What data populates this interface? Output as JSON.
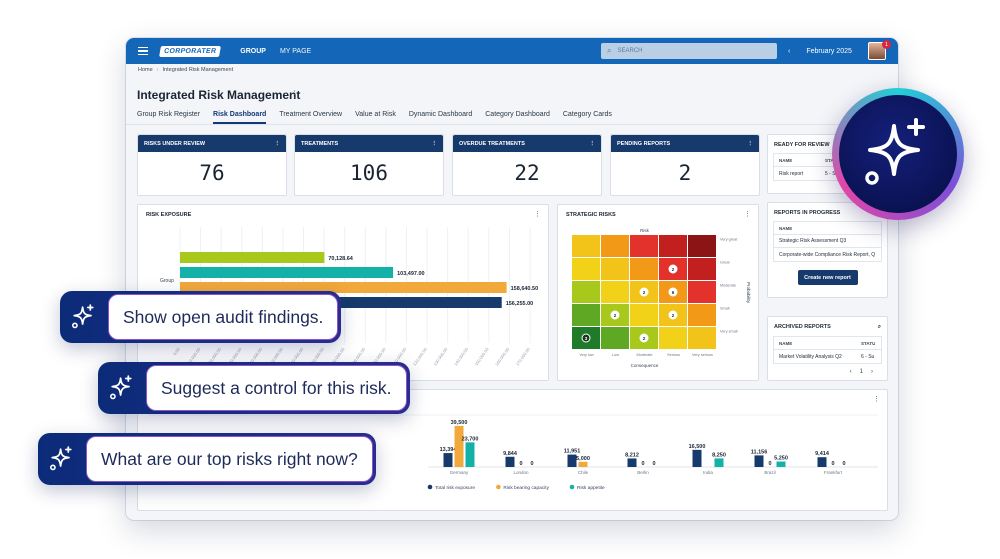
{
  "topbar": {
    "logo": "CORPORATER",
    "nav_group": "GROUP",
    "nav_mypage": "MY PAGE",
    "search_placeholder": "SEARCH",
    "month": "February 2025",
    "prev": "‹",
    "next": "›",
    "notification_count": "1"
  },
  "breadcrumb": {
    "home": "Home",
    "current": "Integrated Risk Management"
  },
  "page": {
    "title": "Integrated Risk Management",
    "more": "⋮"
  },
  "tabs": [
    "Group Risk Register",
    "Risk Dashboard",
    "Treatment Overview",
    "Value at Risk",
    "Dynamic Dashboard",
    "Category Dashboard",
    "Category Cards"
  ],
  "active_tab": "Risk Dashboard",
  "kpis": [
    {
      "label": "RISKS UNDER REVIEW",
      "value": "76"
    },
    {
      "label": "TREATMENTS",
      "value": "106"
    },
    {
      "label": "OVERDUE TREATMENTS",
      "value": "22"
    },
    {
      "label": "PENDING REPORTS",
      "value": "2"
    }
  ],
  "ready_for_review": {
    "title": "READY FOR REVIEW",
    "col_name": "NAME",
    "col_status": "STA",
    "rows": [
      {
        "name": "Risk report",
        "status": "5 - Su"
      }
    ]
  },
  "reports_in_progress": {
    "title": "REPORTS IN PROGRESS",
    "col_name": "NAME",
    "rows": [
      "Strategic Risk Assessment Q3",
      "Corporate-wide Compliance Risk Report, Q"
    ],
    "button": "Create new report"
  },
  "archived_reports": {
    "title": "ARCHIVED REPORTS",
    "col_name": "NAME",
    "col_status": "STATU",
    "rows": [
      {
        "name": "Market Volatility Analysis Q2",
        "status": "6 - Su"
      }
    ],
    "page": "1"
  },
  "risk_exposure": {
    "title": "RISK EXPOSURE",
    "category": "Group",
    "bars": [
      {
        "value": 70128.64,
        "label": "70,128.64",
        "color": "#a8c81c"
      },
      {
        "value": 103497.0,
        "label": "103,497.00",
        "color": "#14b1a8"
      },
      {
        "value": 158640.5,
        "label": "158,640.50",
        "color": "#f2a93b"
      },
      {
        "value": 156255.0,
        "label": "156,255.00",
        "color": "#163a6c"
      }
    ],
    "xticks": [
      "0.00",
      "10,000.00",
      "20,000.00",
      "30,000.00",
      "40,000.00",
      "50,000.00",
      "60,000.00",
      "70,000.00",
      "80,000.00",
      "90,000.00",
      "100,000.00",
      "110,000.00",
      "120,000.00",
      "130,000.00",
      "140,000.00",
      "150,000.00",
      "160,000.00",
      "170,000.00"
    ],
    "xmax": 170000
  },
  "strategic_risks": {
    "title": "STRATEGIC RISKS",
    "top_label": "Risk",
    "x_label": "Consequence",
    "y_label": "Probability",
    "x_ticks": [
      "Very low",
      "Low",
      "Moderate",
      "Serious",
      "Very serious"
    ],
    "y_ticks": [
      "Very great",
      "Great",
      "Moderate",
      "Small",
      "Very small"
    ],
    "colors": [
      [
        "#f2c318",
        "#f29a18",
        "#e2322b",
        "#c21f1f",
        "#8c1414"
      ],
      [
        "#f2d218",
        "#f2c318",
        "#f29a18",
        "#e2322b",
        "#c21f1f"
      ],
      [
        "#a8c81c",
        "#f2d218",
        "#f2c318",
        "#f29a18",
        "#e2322b"
      ],
      [
        "#5ea823",
        "#a8c81c",
        "#f2d218",
        "#f2c318",
        "#f29a18"
      ],
      [
        "#1f7a2a",
        "#5ea823",
        "#a8c81c",
        "#f2d218",
        "#f2c318"
      ]
    ],
    "markers": [
      {
        "row": 1,
        "col": 3,
        "count": "2"
      },
      {
        "row": 2,
        "col": 2,
        "count": "2"
      },
      {
        "row": 2,
        "col": 3,
        "count": "6"
      },
      {
        "row": 3,
        "col": 1,
        "count": "2"
      },
      {
        "row": 3,
        "col": 3,
        "count": "2"
      },
      {
        "row": 4,
        "col": 0,
        "count": "3"
      },
      {
        "row": 4,
        "col": 2,
        "count": "2"
      }
    ]
  },
  "chart_data": {
    "type": "bar",
    "ytick": "50,000.00",
    "categories": [
      "Germany",
      "London",
      "Chile",
      "Berlin",
      "India",
      "Brazil",
      "Frankfurt"
    ],
    "series": [
      {
        "name": "Total risk exposure",
        "color": "#163a6c",
        "values": [
          13394,
          9844,
          11951,
          8212,
          16500,
          11156,
          9414
        ],
        "labels": [
          "13,394",
          "9,844",
          "11,951",
          "8,212",
          "16,500",
          "11,156",
          "9,414"
        ]
      },
      {
        "name": "Risk bearing capacity",
        "color": "#f2a93b",
        "values": [
          39500,
          0,
          5000,
          0,
          10,
          0,
          0
        ],
        "labels": [
          "39,500",
          "0",
          "5,000",
          "0",
          "",
          "0",
          "0"
        ]
      },
      {
        "name": "Risk appetite",
        "color": "#14b1a8",
        "values": [
          23700,
          0,
          0,
          0,
          8250,
          5250,
          0
        ],
        "labels": [
          "23,700",
          "0",
          "",
          "0",
          "8,250",
          "5,250",
          "0"
        ]
      }
    ],
    "ylim": [
      0,
      50000
    ]
  },
  "prompts": [
    "Show open audit findings.",
    "Suggest a control for this risk.",
    "What are our top risks right now?"
  ]
}
